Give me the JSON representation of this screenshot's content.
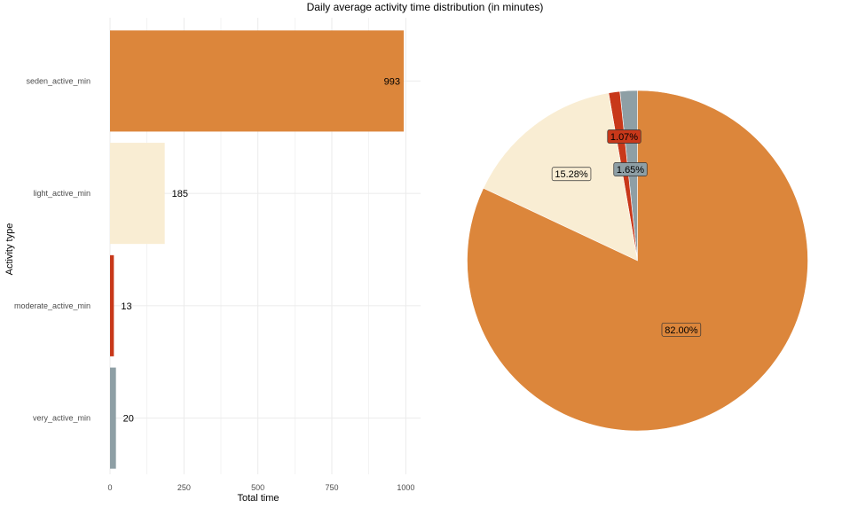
{
  "title": "Daily average activity time distribution (in minutes)",
  "colors": {
    "very": "#8E9FA5",
    "moderate": "#C8381A",
    "light": "#F9EDD3",
    "seden": "#DC863B",
    "grid": "#ebebeb"
  },
  "chart_data": [
    {
      "type": "bar",
      "orientation": "horizontal",
      "categories": [
        "seden_active_min",
        "light_active_min",
        "moderate_active_min",
        "very_active_min"
      ],
      "values": [
        993,
        185,
        13,
        20
      ],
      "data_labels": [
        "993",
        "185",
        "13",
        "20"
      ],
      "xlabel": "Total time",
      "ylabel": "Activity type",
      "xlim": [
        0,
        1050
      ],
      "xticks": [
        0,
        250,
        500,
        750,
        1000
      ],
      "grid": true,
      "color_keys": [
        "seden",
        "light",
        "moderate",
        "very"
      ]
    },
    {
      "type": "pie",
      "slices": [
        {
          "key": "very",
          "value": 1.65,
          "label": "1.65%"
        },
        {
          "key": "moderate",
          "value": 1.07,
          "label": "1.07%"
        },
        {
          "key": "light",
          "value": 15.28,
          "label": "15.28%"
        },
        {
          "key": "seden",
          "value": 82.0,
          "label": "82.00%"
        }
      ],
      "start": "top",
      "direction": "counterclockwise"
    }
  ]
}
